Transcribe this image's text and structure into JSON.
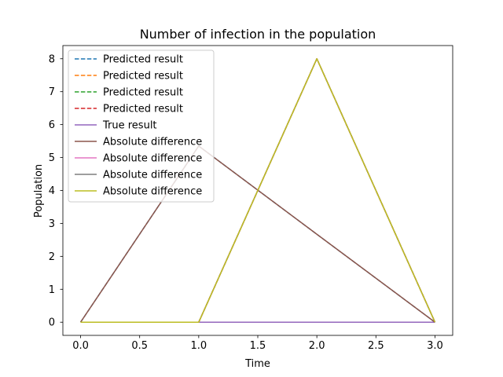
{
  "chart_data": {
    "type": "line",
    "title": "Number of infection in the population",
    "xlabel": "Time",
    "ylabel": "Population",
    "xlim": [
      -0.15,
      3.15
    ],
    "ylim": [
      -0.4,
      8.4
    ],
    "xticks": [
      0.0,
      0.5,
      1.0,
      1.5,
      2.0,
      2.5,
      3.0
    ],
    "xtick_labels": [
      "0.0",
      "0.5",
      "1.0",
      "1.5",
      "2.0",
      "2.5",
      "3.0"
    ],
    "yticks": [
      0,
      1,
      2,
      3,
      4,
      5,
      6,
      7,
      8
    ],
    "ytick_labels": [
      "0",
      "1",
      "2",
      "3",
      "4",
      "5",
      "6",
      "7",
      "8"
    ],
    "grid": false,
    "legend_position": "upper left",
    "series": [
      {
        "name": "Predicted result",
        "color": "#1f77b4",
        "dash": true,
        "x": [
          0,
          1,
          2,
          3
        ],
        "y": [
          0,
          5.35,
          2.67,
          0
        ]
      },
      {
        "name": "Predicted result",
        "color": "#ff7f0e",
        "dash": true,
        "x": [
          0,
          1,
          2,
          3
        ],
        "y": [
          0,
          0,
          8,
          0
        ]
      },
      {
        "name": "Predicted result",
        "color": "#2ca02c",
        "dash": true,
        "x": [
          0,
          1,
          2,
          3
        ],
        "y": [
          0,
          0,
          0,
          0
        ]
      },
      {
        "name": "Predicted result",
        "color": "#d62728",
        "dash": true,
        "x": [
          0,
          1,
          2,
          3
        ],
        "y": [
          0,
          0,
          8,
          0
        ]
      },
      {
        "name": "True result",
        "color": "#9467bd",
        "dash": false,
        "x": [
          0,
          1,
          2,
          3
        ],
        "y": [
          0,
          0,
          0,
          0
        ]
      },
      {
        "name": "Absolute difference",
        "color": "#8c564b",
        "dash": false,
        "x": [
          0,
          1,
          2,
          3
        ],
        "y": [
          0,
          5.35,
          2.67,
          0
        ]
      },
      {
        "name": "Absolute difference",
        "color": "#e377c2",
        "dash": false,
        "x": [
          0,
          1,
          2,
          3
        ],
        "y": [
          0,
          0,
          8,
          0
        ]
      },
      {
        "name": "Absolute difference",
        "color": "#7f7f7f",
        "dash": false,
        "x": [
          0,
          1,
          2,
          3
        ],
        "y": [
          0,
          0,
          8,
          0
        ]
      },
      {
        "name": "Absolute difference",
        "color": "#bcbd22",
        "dash": false,
        "x": [
          0,
          1,
          2,
          3
        ],
        "y": [
          0,
          0,
          8,
          0
        ]
      }
    ]
  }
}
